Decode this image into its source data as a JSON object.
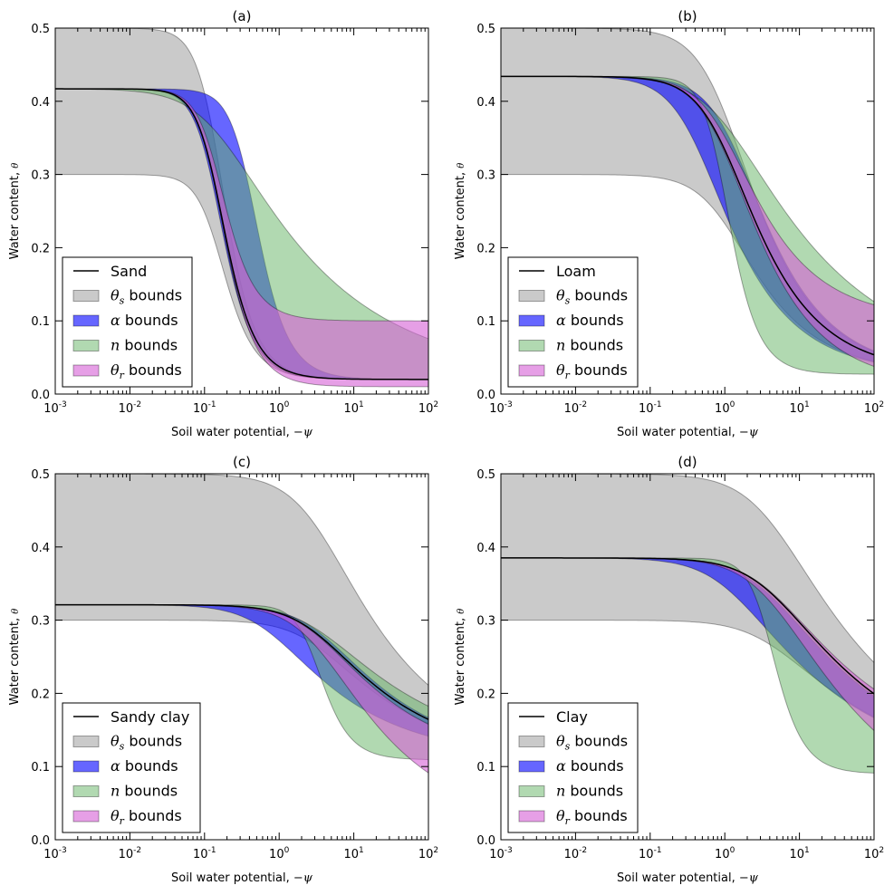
{
  "figure": {
    "xlabel_text": "Soil water potential, ",
    "xlabel_math": "−ψ",
    "ylabel_text": "Water content, ",
    "ylabel_math": "θ",
    "legend_labels": {
      "thetas": {
        "sym": "θ",
        "sub": "s",
        "text": " bounds"
      },
      "alpha": {
        "sym": "α",
        "sub": "",
        "text": " bounds"
      },
      "n": {
        "sym": "n",
        "sub": "",
        "text": " bounds"
      },
      "thetar": {
        "sym": "θ",
        "sub": "r",
        "text": " bounds"
      }
    },
    "colors": {
      "thetas": "#b3b3b3",
      "alpha": "#0000ff",
      "n": "#64b464",
      "thetar": "#d55fd5",
      "line": "#000000"
    }
  },
  "chart_data": [
    {
      "type": "area",
      "title": "(a)",
      "soil": "Sand",
      "xscale": "log",
      "xlim": [
        0.001,
        100
      ],
      "ylim": [
        0,
        0.5
      ],
      "xticks": [
        0.001,
        0.01,
        0.1,
        1,
        10,
        100
      ],
      "yticks": [
        0.0,
        0.1,
        0.2,
        0.3,
        0.4,
        0.5
      ],
      "grid": false,
      "legend_position": "lower-left",
      "base": {
        "theta_r": 0.02,
        "theta_s": 0.417,
        "alpha": 7.0,
        "n": 2.6
      },
      "series": [
        {
          "name": "Sand",
          "kind": "line",
          "theta_r": 0.02,
          "theta_s": 0.417,
          "alpha": 7.0,
          "n": 2.6
        },
        {
          "name": "θs bounds",
          "kind": "band",
          "param": "theta_s",
          "range": [
            0.3,
            0.5
          ]
        },
        {
          "name": "α bounds",
          "kind": "band",
          "param": "alpha",
          "range": [
            2.5,
            7.5
          ]
        },
        {
          "name": "n bounds",
          "kind": "band",
          "param": "n",
          "range": [
            1.3,
            2.7
          ]
        },
        {
          "name": "θr bounds",
          "kind": "band",
          "param": "theta_r",
          "range": [
            0.01,
            0.1
          ]
        }
      ]
    },
    {
      "type": "area",
      "title": "(b)",
      "soil": "Loam",
      "xscale": "log",
      "xlim": [
        0.001,
        100
      ],
      "ylim": [
        0,
        0.5
      ],
      "xticks": [
        0.001,
        0.01,
        0.1,
        1,
        10,
        100
      ],
      "yticks": [
        0.0,
        0.1,
        0.2,
        0.3,
        0.4,
        0.5
      ],
      "grid": false,
      "legend_position": "lower-left",
      "base": {
        "theta_r": 0.027,
        "theta_s": 0.434,
        "alpha": 1.1,
        "n": 1.58
      },
      "series": [
        {
          "name": "Loam",
          "kind": "line",
          "theta_r": 0.027,
          "theta_s": 0.434,
          "alpha": 1.1,
          "n": 1.58
        },
        {
          "name": "θs bounds",
          "kind": "band",
          "param": "theta_s",
          "range": [
            0.3,
            0.5
          ]
        },
        {
          "name": "α bounds",
          "kind": "band",
          "param": "alpha",
          "range": [
            0.8,
            2.5
          ]
        },
        {
          "name": "n bounds",
          "kind": "band",
          "param": "n",
          "range": [
            1.3,
            2.7
          ]
        },
        {
          "name": "θr bounds",
          "kind": "band",
          "param": "theta_r",
          "range": [
            0.01,
            0.1
          ]
        }
      ]
    },
    {
      "type": "area",
      "title": "(c)",
      "soil": "Sandy clay",
      "xscale": "log",
      "xlim": [
        0.001,
        100
      ],
      "ylim": [
        0,
        0.5
      ],
      "xticks": [
        0.001,
        0.01,
        0.1,
        1,
        10,
        100
      ],
      "yticks": [
        0.0,
        0.1,
        0.2,
        0.3,
        0.4,
        0.5
      ],
      "grid": false,
      "legend_position": "lower-left",
      "base": {
        "theta_r": 0.109,
        "theta_s": 0.321,
        "alpha": 0.34,
        "n": 1.38
      },
      "series": [
        {
          "name": "Sandy clay",
          "kind": "line",
          "theta_r": 0.109,
          "theta_s": 0.321,
          "alpha": 0.34,
          "n": 1.38
        },
        {
          "name": "θs bounds",
          "kind": "band",
          "param": "theta_s",
          "range": [
            0.3,
            0.5
          ]
        },
        {
          "name": "α bounds",
          "kind": "band",
          "param": "alpha",
          "range": [
            0.3,
            1.4
          ]
        },
        {
          "name": "n bounds",
          "kind": "band",
          "param": "n",
          "range": [
            1.3,
            2.7
          ]
        },
        {
          "name": "θr bounds",
          "kind": "band",
          "param": "theta_r",
          "range": [
            0.01,
            0.1
          ]
        }
      ]
    },
    {
      "type": "area",
      "title": "(d)",
      "soil": "Clay",
      "xscale": "log",
      "xlim": [
        0.001,
        100
      ],
      "ylim": [
        0,
        0.5
      ],
      "xticks": [
        0.001,
        0.01,
        0.1,
        1,
        10,
        100
      ],
      "yticks": [
        0.0,
        0.1,
        0.2,
        0.3,
        0.4,
        0.5
      ],
      "grid": false,
      "legend_position": "lower-left",
      "base": {
        "theta_r": 0.09,
        "theta_s": 0.385,
        "alpha": 0.27,
        "n": 1.3
      },
      "series": [
        {
          "name": "Clay",
          "kind": "line",
          "theta_r": 0.09,
          "theta_s": 0.385,
          "alpha": 0.27,
          "n": 1.3
        },
        {
          "name": "θs bounds",
          "kind": "band",
          "param": "theta_s",
          "range": [
            0.3,
            0.5
          ]
        },
        {
          "name": "α bounds",
          "kind": "band",
          "param": "alpha",
          "range": [
            0.3,
            0.9
          ]
        },
        {
          "name": "n bounds",
          "kind": "band",
          "param": "n",
          "range": [
            1.3,
            2.7
          ]
        },
        {
          "name": "θr bounds",
          "kind": "band",
          "param": "theta_r",
          "range": [
            0.01,
            0.1
          ]
        }
      ]
    }
  ]
}
